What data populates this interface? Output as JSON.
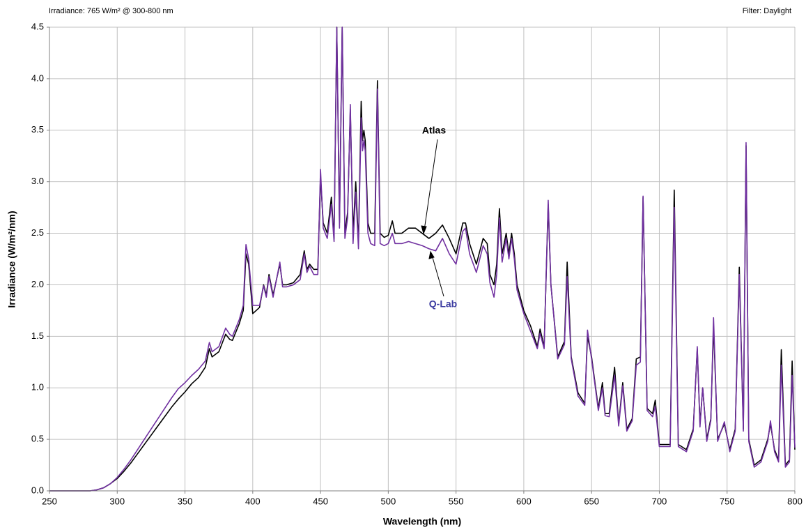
{
  "chart_data": {
    "type": "line",
    "annotations": [
      "Irradiance: 765 W/m² @ 300-800 nm",
      "Filter: Daylight",
      "Atlas",
      "Q-Lab"
    ],
    "x_label": "Wavelength (nm)",
    "y_label": "Irradiance (W/m²/nm)",
    "xlim": [
      250,
      800
    ],
    "ylim": [
      0,
      4.5
    ],
    "xticks": [
      250,
      300,
      350,
      400,
      450,
      500,
      550,
      600,
      650,
      700,
      750,
      800
    ],
    "yticks": [
      {
        "value": 0,
        "label": "0.0"
      },
      0.5,
      {
        "value": 1,
        "label": "1.0"
      },
      1.5,
      {
        "value": 2,
        "label": "2.0"
      },
      2.5,
      {
        "value": 3,
        "label": "3.0"
      },
      3.5,
      {
        "value": 4,
        "label": "4.0"
      },
      4.5
    ],
    "grid": true,
    "x": [
      250,
      280,
      285,
      290,
      295,
      300,
      305,
      310,
      315,
      320,
      325,
      330,
      335,
      340,
      345,
      350,
      355,
      360,
      365,
      368,
      370,
      375,
      380,
      383,
      385,
      390,
      393,
      395,
      397,
      400,
      405,
      408,
      410,
      412,
      415,
      420,
      422,
      425,
      430,
      435,
      438,
      440,
      442,
      445,
      448,
      450,
      452,
      455,
      458,
      460,
      462,
      464,
      466,
      468,
      470,
      472,
      474,
      476,
      478,
      480,
      481,
      482,
      483,
      485,
      487,
      490,
      492,
      494,
      497,
      500,
      503,
      505,
      510,
      515,
      520,
      525,
      530,
      535,
      540,
      545,
      550,
      555,
      557,
      560,
      565,
      570,
      573,
      575,
      578,
      580,
      582,
      584,
      587,
      589,
      591,
      593,
      595,
      600,
      605,
      610,
      612,
      615,
      618,
      620,
      625,
      630,
      632,
      635,
      640,
      645,
      647,
      650,
      655,
      658,
      660,
      663,
      667,
      670,
      673,
      676,
      680,
      683,
      686,
      688,
      691,
      695,
      697,
      700,
      705,
      708,
      711,
      714,
      720,
      725,
      728,
      730,
      732,
      735,
      738,
      740,
      743,
      748,
      752,
      756,
      759,
      762,
      764,
      766,
      770,
      775,
      780,
      782,
      785,
      788,
      790,
      793,
      796,
      798,
      800
    ],
    "series": [
      {
        "name": "Atlas",
        "color": "#000000",
        "values": [
          0,
          0,
          0.01,
          0.03,
          0.07,
          0.12,
          0.19,
          0.27,
          0.36,
          0.45,
          0.54,
          0.63,
          0.72,
          0.81,
          0.89,
          0.96,
          1.04,
          1.1,
          1.2,
          1.38,
          1.3,
          1.35,
          1.52,
          1.47,
          1.46,
          1.62,
          1.75,
          2.3,
          2.2,
          1.72,
          1.78,
          2.0,
          1.9,
          2.1,
          1.9,
          2.2,
          2.0,
          2.0,
          2.02,
          2.1,
          2.33,
          2.15,
          2.2,
          2.15,
          2.15,
          3.05,
          2.6,
          2.5,
          2.85,
          2.45,
          4.5,
          2.6,
          4.5,
          2.5,
          2.7,
          3.7,
          2.5,
          3.0,
          2.4,
          3.78,
          3.4,
          3.5,
          3.4,
          2.6,
          2.5,
          2.5,
          3.98,
          2.5,
          2.46,
          2.48,
          2.62,
          2.5,
          2.5,
          2.55,
          2.55,
          2.5,
          2.45,
          2.5,
          2.58,
          2.45,
          2.3,
          2.6,
          2.6,
          2.4,
          2.2,
          2.45,
          2.4,
          2.1,
          2.0,
          2.2,
          2.74,
          2.3,
          2.5,
          2.3,
          2.5,
          2.3,
          2.0,
          1.75,
          1.6,
          1.4,
          1.57,
          1.4,
          2.78,
          2.0,
          1.3,
          1.45,
          2.22,
          1.3,
          0.95,
          0.85,
          1.5,
          1.3,
          0.8,
          1.05,
          0.75,
          0.75,
          1.2,
          0.65,
          1.05,
          0.6,
          0.7,
          1.28,
          1.3,
          2.85,
          0.8,
          0.75,
          0.88,
          0.45,
          0.45,
          0.45,
          2.92,
          0.45,
          0.4,
          0.6,
          1.38,
          0.65,
          1.0,
          0.5,
          0.7,
          1.6,
          0.5,
          0.65,
          0.4,
          0.6,
          2.17,
          0.6,
          3.35,
          0.5,
          0.25,
          0.3,
          0.5,
          0.65,
          0.4,
          0.3,
          1.37,
          0.25,
          0.3,
          1.26,
          0.4
        ]
      },
      {
        "name": "Q-Lab",
        "color": "#7030a0",
        "values": [
          0,
          0,
          0.01,
          0.03,
          0.07,
          0.13,
          0.21,
          0.3,
          0.4,
          0.5,
          0.6,
          0.7,
          0.8,
          0.9,
          0.99,
          1.05,
          1.12,
          1.18,
          1.26,
          1.44,
          1.35,
          1.4,
          1.58,
          1.52,
          1.5,
          1.66,
          1.8,
          2.39,
          2.25,
          1.8,
          1.8,
          1.99,
          1.88,
          2.08,
          1.88,
          2.22,
          1.98,
          1.98,
          2.0,
          2.05,
          2.3,
          2.12,
          2.18,
          2.1,
          2.1,
          3.12,
          2.55,
          2.45,
          2.78,
          2.42,
          4.5,
          2.55,
          4.5,
          2.45,
          2.65,
          3.75,
          2.4,
          2.9,
          2.35,
          3.62,
          3.3,
          3.4,
          3.3,
          2.5,
          2.4,
          2.38,
          3.9,
          2.4,
          2.38,
          2.4,
          2.5,
          2.4,
          2.4,
          2.42,
          2.4,
          2.38,
          2.35,
          2.33,
          2.45,
          2.3,
          2.2,
          2.52,
          2.55,
          2.3,
          2.12,
          2.38,
          2.3,
          2.02,
          1.88,
          2.1,
          2.65,
          2.22,
          2.45,
          2.25,
          2.45,
          2.25,
          1.95,
          1.72,
          1.55,
          1.38,
          1.53,
          1.38,
          2.82,
          2.0,
          1.28,
          1.42,
          2.08,
          1.28,
          0.92,
          0.83,
          1.56,
          1.28,
          0.78,
          1.0,
          0.73,
          0.72,
          1.12,
          0.63,
          1.02,
          0.58,
          0.68,
          1.22,
          1.25,
          2.86,
          0.78,
          0.72,
          0.82,
          0.43,
          0.43,
          0.43,
          2.75,
          0.43,
          0.38,
          0.58,
          1.4,
          0.62,
          1.0,
          0.48,
          0.68,
          1.68,
          0.48,
          0.67,
          0.38,
          0.58,
          2.1,
          0.58,
          3.38,
          0.48,
          0.23,
          0.28,
          0.48,
          0.68,
          0.38,
          0.28,
          1.22,
          0.23,
          0.28,
          1.12,
          0.42
        ]
      }
    ]
  }
}
